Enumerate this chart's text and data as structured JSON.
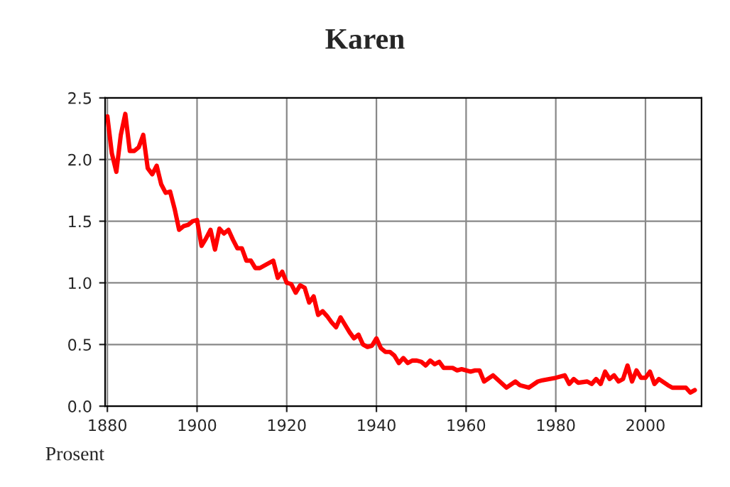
{
  "chart_data": {
    "type": "line",
    "title": "Karen",
    "annotations": [
      "Prosent"
    ],
    "x": [
      1880,
      1881,
      1882,
      1883,
      1884,
      1885,
      1886,
      1887,
      1888,
      1889,
      1890,
      1891,
      1892,
      1893,
      1894,
      1895,
      1896,
      1897,
      1898,
      1899,
      1900,
      1901,
      1902,
      1903,
      1904,
      1905,
      1906,
      1907,
      1908,
      1909,
      1910,
      1911,
      1912,
      1913,
      1914,
      1915,
      1916,
      1917,
      1918,
      1919,
      1920,
      1921,
      1922,
      1923,
      1924,
      1925,
      1926,
      1927,
      1928,
      1929,
      1930,
      1931,
      1932,
      1933,
      1934,
      1935,
      1936,
      1937,
      1938,
      1939,
      1940,
      1941,
      1942,
      1943,
      1944,
      1945,
      1946,
      1947,
      1948,
      1949,
      1950,
      1951,
      1952,
      1953,
      1954,
      1955,
      1956,
      1957,
      1958,
      1959,
      1960,
      1961,
      1962,
      1963,
      1964,
      1966,
      1969,
      1971,
      1972,
      1974,
      1976,
      1977,
      1980,
      1982,
      1983,
      1984,
      1985,
      1987,
      1988,
      1989,
      1990,
      1991,
      1992,
      1993,
      1994,
      1995,
      1996,
      1997,
      1998,
      1999,
      2000,
      2001,
      2002,
      2003,
      2005,
      2006,
      2008,
      2009,
      2010,
      2011
    ],
    "series": [
      {
        "color": "#ff0000",
        "values": [
          2.35,
          2.05,
          1.9,
          2.2,
          2.37,
          2.07,
          2.07,
          2.1,
          2.2,
          1.93,
          1.88,
          1.95,
          1.8,
          1.73,
          1.74,
          1.6,
          1.43,
          1.46,
          1.47,
          1.5,
          1.51,
          1.3,
          1.36,
          1.43,
          1.27,
          1.44,
          1.4,
          1.43,
          1.35,
          1.28,
          1.28,
          1.18,
          1.18,
          1.12,
          1.12,
          1.14,
          1.16,
          1.18,
          1.04,
          1.09,
          1.0,
          0.99,
          0.92,
          0.98,
          0.96,
          0.84,
          0.89,
          0.74,
          0.77,
          0.73,
          0.68,
          0.64,
          0.72,
          0.66,
          0.6,
          0.55,
          0.58,
          0.5,
          0.48,
          0.49,
          0.55,
          0.47,
          0.44,
          0.44,
          0.41,
          0.35,
          0.39,
          0.35,
          0.37,
          0.37,
          0.36,
          0.33,
          0.37,
          0.34,
          0.36,
          0.31,
          0.31,
          0.31,
          0.29,
          0.3,
          0.29,
          0.28,
          0.29,
          0.29,
          0.2,
          0.25,
          0.15,
          0.2,
          0.17,
          0.15,
          0.2,
          0.21,
          0.23,
          0.25,
          0.18,
          0.22,
          0.19,
          0.2,
          0.18,
          0.22,
          0.18,
          0.28,
          0.22,
          0.25,
          0.2,
          0.22,
          0.33,
          0.2,
          0.29,
          0.23,
          0.23,
          0.28,
          0.18,
          0.22,
          0.17,
          0.15,
          0.15,
          0.15,
          0.11,
          0.13
        ]
      }
    ],
    "xlim": [
      1879.5,
      2012.5
    ],
    "xticks": [
      1880,
      1900,
      1920,
      1940,
      1960,
      1980,
      2000
    ],
    "ylim": [
      0,
      2.5
    ],
    "yticks": [
      {
        "value": 0,
        "label": "0.0"
      },
      {
        "value": 0.5,
        "label": "0.5"
      },
      {
        "value": 1,
        "label": "1.0"
      },
      {
        "value": 1.5,
        "label": "1.5"
      },
      {
        "value": 2,
        "label": "2.0"
      },
      {
        "value": 2.5,
        "label": "2.5"
      }
    ],
    "grid": true,
    "marker": "none",
    "line_style": "solid"
  }
}
